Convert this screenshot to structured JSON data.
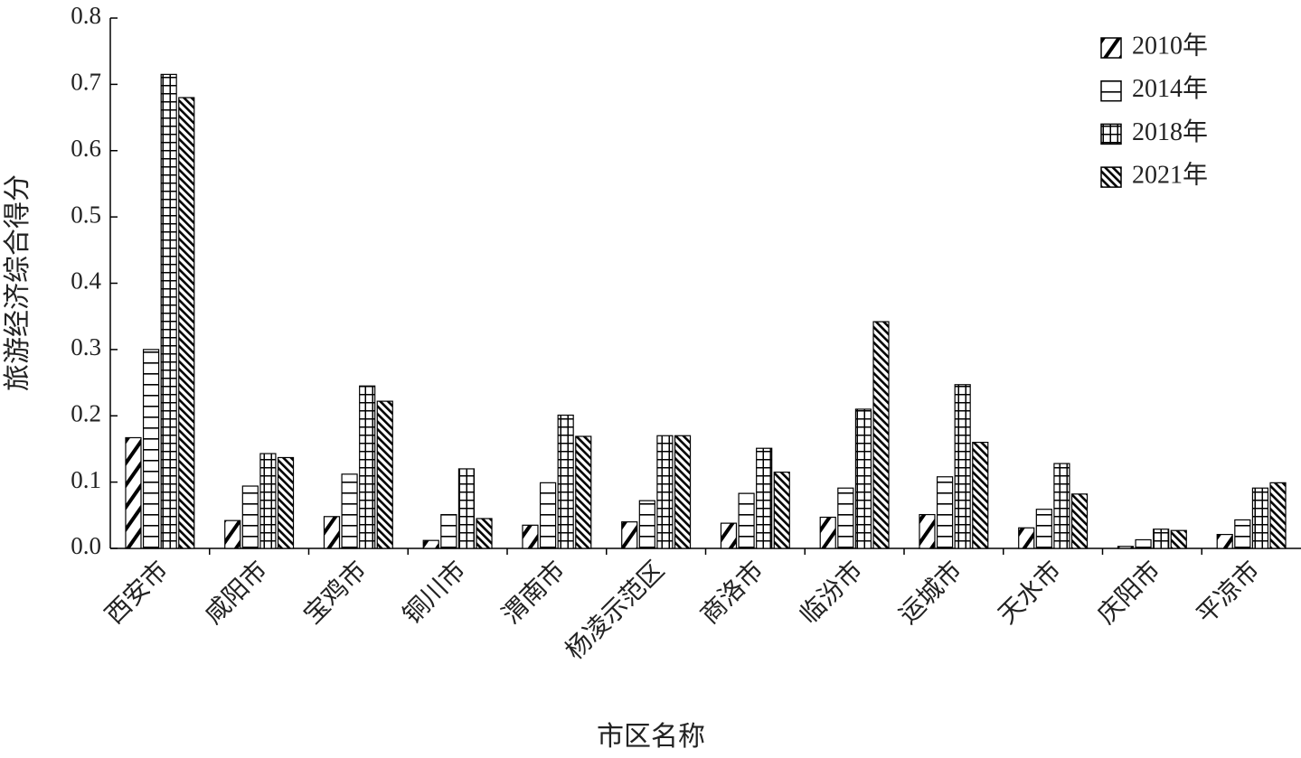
{
  "chart_data": {
    "type": "bar",
    "x_label": "市区名称",
    "y_label": "旅游经济综合得分",
    "categories": [
      "西安市",
      "咸阳市",
      "宝鸡市",
      "铜川市",
      "渭南市",
      "杨凌示范区",
      "商洛市",
      "临汾市",
      "运城市",
      "天水市",
      "庆阳市",
      "平凉市"
    ],
    "series": [
      {
        "name": "2010年",
        "color": "#000000",
        "pattern": "diagonal",
        "values": [
          0.167,
          0.042,
          0.048,
          0.012,
          0.035,
          0.04,
          0.038,
          0.047,
          0.051,
          0.031,
          0.003,
          0.021
        ]
      },
      {
        "name": "2014年",
        "color": "#000000",
        "pattern": "horizontal",
        "values": [
          0.3,
          0.094,
          0.112,
          0.051,
          0.099,
          0.072,
          0.083,
          0.091,
          0.108,
          0.059,
          0.013,
          0.043
        ]
      },
      {
        "name": "2018年",
        "color": "#000000",
        "pattern": "grid",
        "values": [
          0.715,
          0.143,
          0.245,
          0.12,
          0.201,
          0.17,
          0.151,
          0.21,
          0.247,
          0.128,
          0.029,
          0.091
        ]
      },
      {
        "name": "2021年",
        "color": "#000000",
        "pattern": "backdiagonal",
        "values": [
          0.68,
          0.137,
          0.222,
          0.045,
          0.169,
          0.17,
          0.115,
          0.342,
          0.16,
          0.082,
          0.027,
          0.099
        ]
      }
    ],
    "ylim": [
      0,
      0.8
    ],
    "yticks": [
      {
        "value": 0,
        "label": "0.0"
      },
      0.1,
      0.2,
      0.3,
      0.4,
      0.5,
      0.6,
      0.7,
      0.8
    ],
    "legend": "top-right",
    "grid": false
  }
}
